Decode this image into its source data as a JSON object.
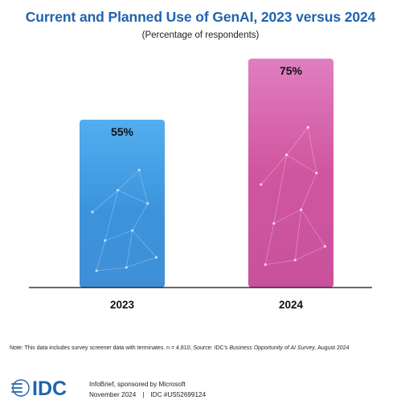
{
  "chart_data": {
    "type": "bar",
    "title": "Current and Planned Use of GenAI, 2023 versus 2024",
    "subtitle": "(Percentage of respondents)",
    "categories": [
      "2023",
      "2024"
    ],
    "values": [
      55,
      75
    ],
    "value_labels": [
      "55%",
      "75%"
    ],
    "xlabel": "",
    "ylabel": "",
    "ylim": [
      0,
      100
    ],
    "grid": false,
    "legend": "none"
  },
  "colors": {
    "title": "#1f63ad",
    "bar_2023": "#3d97e0",
    "bar_2024": "#d45ba6",
    "brand": "#1f63ad"
  },
  "note": {
    "prefix": "Note: This data includes survey screener data with terminates. n = 4,810; Source: IDC's ",
    "source_title": "Business Opportunity of AI Survey",
    "suffix": ", August 2024"
  },
  "footer": {
    "logo_text": "IDC",
    "line1": "InfoBrief, sponsored by Microsoft",
    "date": "November 2024",
    "separator": "|",
    "doc_id": "IDC #US52699124"
  }
}
